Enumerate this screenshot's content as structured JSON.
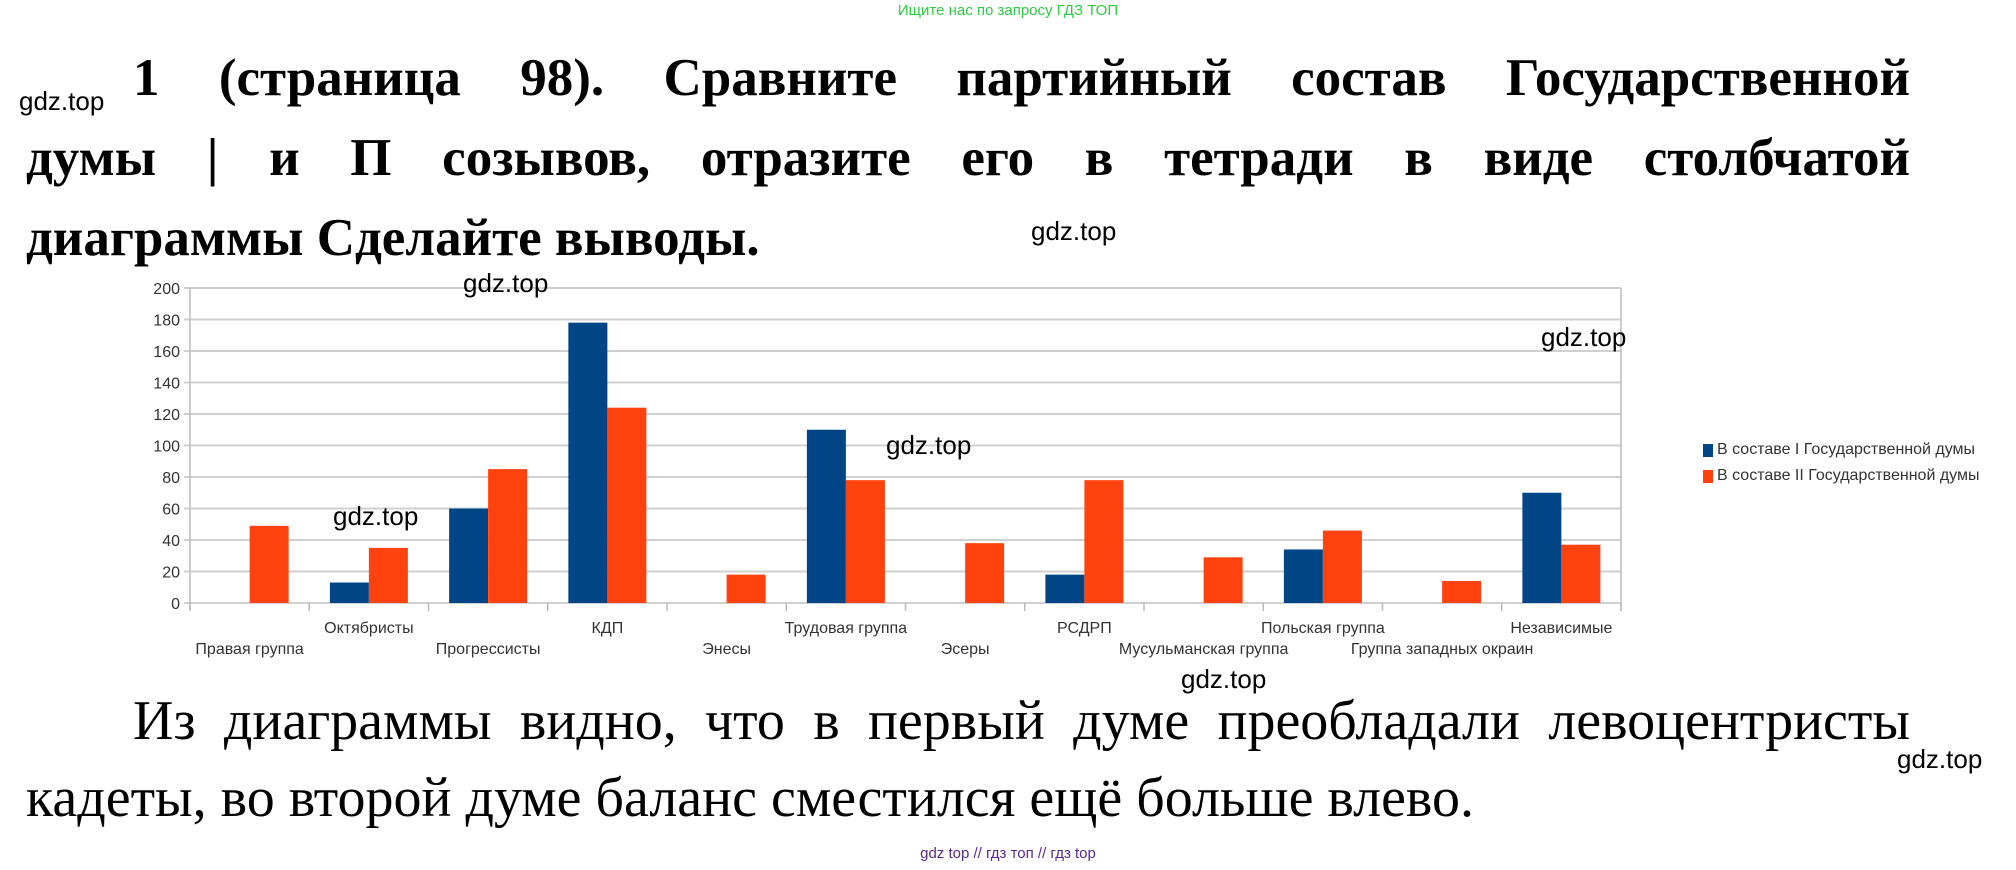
{
  "header_note": "Ищите нас по запросу ГДЗ ТОП",
  "title_lines": [
    "1 (страница 98). Сравните партийный состав Государственной",
    "думы | и П созывов, отразите его в тетради в виде столбчатой",
    "диаграммы Сделайте выводы."
  ],
  "conclusion_lines": [
    "Из диаграммы видно, что в первый думе преобладали левоцентристы",
    "кадеты, во второй думе баланс сместился ещё больше влево."
  ],
  "footer_note": "gdz top  //  гдз топ  //  гдз top",
  "watermarks": [
    "gdz.top",
    "gdz.top",
    "gdz.top",
    "gdz.top",
    "gdz.top",
    "gdz.top",
    "gdz.top",
    "gdz.top"
  ],
  "colors": {
    "series1": "#004586",
    "series2": "#ff420e",
    "grid": "#d0d0d0"
  },
  "chart_data": {
    "type": "bar",
    "title": "",
    "xlabel": "",
    "ylabel": "",
    "ylim": [
      0,
      200
    ],
    "yticks": [
      "0",
      "20",
      "40",
      "60",
      "80",
      "100",
      "120",
      "140",
      "160",
      "180",
      "200"
    ],
    "grid": true,
    "legend_position": "right",
    "categories": [
      "Правая группа",
      "Октябристы",
      "Прогрессисты",
      "КДП",
      "Энесы",
      "Трудовая группа",
      "Эсеры",
      "РСДРП",
      "Мусульманская группа",
      "Польская группа",
      "Группа западных окраин",
      "Независимые"
    ],
    "series": [
      {
        "name": "В составе I Государственной думы",
        "values": [
          0,
          13,
          60,
          178,
          0,
          110,
          0,
          18,
          0,
          34,
          0,
          70
        ]
      },
      {
        "name": "В составе II Государственной думы",
        "values": [
          49,
          35,
          85,
          124,
          18,
          78,
          38,
          78,
          29,
          46,
          14,
          37
        ]
      }
    ]
  }
}
